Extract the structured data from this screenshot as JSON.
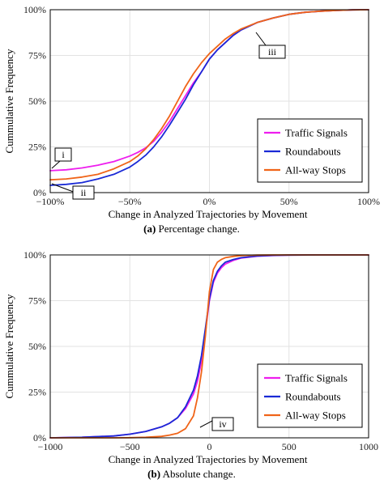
{
  "chart_data": [
    {
      "type": "line",
      "panel": "a",
      "ylabel": "Cummulative Frequency",
      "xlabel": "Change in Analyzed Trajectories by Movement",
      "caption_bold": "(a)",
      "caption_text": " Percentage change.",
      "xlim": [
        -100,
        100
      ],
      "ylim": [
        0,
        100
      ],
      "x_ticks": [
        -100,
        -50,
        0,
        50,
        100
      ],
      "x_tick_labels": [
        "−100%",
        "−50%",
        "0%",
        "50%",
        "100%"
      ],
      "y_ticks": [
        0,
        25,
        50,
        75,
        100
      ],
      "y_tick_labels": [
        "0%",
        "25%",
        "50%",
        "75%",
        "100%"
      ],
      "grid": true,
      "legend_position": "bottom-right",
      "series": [
        {
          "name": "Traffic Signals",
          "color": "#ee1eee",
          "x": [
            -100,
            -90,
            -80,
            -70,
            -60,
            -50,
            -45,
            -40,
            -35,
            -30,
            -25,
            -20,
            -15,
            -10,
            -5,
            0,
            5,
            10,
            15,
            20,
            30,
            40,
            50,
            60,
            70,
            80,
            90,
            100
          ],
          "y": [
            12,
            12.5,
            13.5,
            15,
            17,
            20,
            22,
            24.5,
            28,
            33,
            39,
            46,
            53,
            60,
            66,
            73,
            78,
            82,
            86,
            89,
            93,
            95.5,
            97.5,
            98.6,
            99.2,
            99.6,
            99.9,
            100
          ]
        },
        {
          "name": "Roundabouts",
          "color": "#1a2ad6",
          "x": [
            -100,
            -90,
            -80,
            -70,
            -60,
            -50,
            -45,
            -40,
            -35,
            -30,
            -25,
            -20,
            -15,
            -10,
            -5,
            0,
            5,
            10,
            15,
            20,
            30,
            40,
            50,
            60,
            70,
            80,
            90,
            100
          ],
          "y": [
            4,
            4.5,
            5.5,
            7.5,
            10,
            14,
            17,
            20.5,
            25,
            30.5,
            37,
            44,
            51,
            59,
            66,
            73,
            78,
            82,
            86,
            89,
            93,
            95.5,
            97.5,
            98.6,
            99.2,
            99.6,
            99.9,
            100
          ]
        },
        {
          "name": "All-way Stops",
          "color": "#f06418",
          "x": [
            -100,
            -90,
            -80,
            -70,
            -60,
            -50,
            -45,
            -40,
            -35,
            -30,
            -25,
            -20,
            -15,
            -10,
            -5,
            0,
            5,
            10,
            15,
            20,
            30,
            40,
            50,
            60,
            70,
            80,
            90,
            100
          ],
          "y": [
            7,
            7.5,
            8.5,
            10,
            13,
            17,
            20,
            24,
            29,
            35,
            42,
            50,
            58,
            65,
            71,
            76,
            80,
            84,
            87,
            89.5,
            93,
            95.5,
            97.5,
            98.6,
            99.2,
            99.6,
            99.9,
            100
          ]
        }
      ],
      "annotations": [
        {
          "label": "i",
          "x": -100,
          "y": 12
        },
        {
          "label": "ii",
          "x": -100,
          "y": 4
        },
        {
          "label": "iii",
          "x": 28,
          "y": 91
        }
      ]
    },
    {
      "type": "line",
      "panel": "b",
      "ylabel": "Cummulative Frequency",
      "xlabel": "Change in Analyzed Trajectories by Movement",
      "caption_bold": "(b)",
      "caption_text": " Absolute change.",
      "xlim": [
        -1000,
        1000
      ],
      "ylim": [
        0,
        100
      ],
      "x_ticks": [
        -1000,
        -500,
        0,
        500,
        1000
      ],
      "x_tick_labels": [
        "−1000",
        "−500",
        "0",
        "500",
        "1000"
      ],
      "y_ticks": [
        0,
        25,
        50,
        75,
        100
      ],
      "y_tick_labels": [
        "0%",
        "25%",
        "50%",
        "75%",
        "100%"
      ],
      "grid": true,
      "legend_position": "bottom-right",
      "series": [
        {
          "name": "Traffic Signals",
          "color": "#ee1eee",
          "x": [
            -1000,
            -800,
            -600,
            -500,
            -400,
            -300,
            -250,
            -200,
            -150,
            -100,
            -75,
            -50,
            -25,
            0,
            25,
            50,
            75,
            100,
            150,
            200,
            300,
            400,
            500,
            700,
            1000
          ],
          "y": [
            0,
            0.3,
            1,
            2,
            3.5,
            6,
            8,
            11,
            16,
            24,
            31,
            42,
            58,
            75,
            85,
            90,
            93,
            95,
            97,
            98.3,
            99.3,
            99.7,
            99.9,
            100,
            100
          ]
        },
        {
          "name": "Roundabouts",
          "color": "#1a2ad6",
          "x": [
            -1000,
            -800,
            -600,
            -500,
            -400,
            -300,
            -250,
            -200,
            -150,
            -100,
            -75,
            -50,
            -25,
            0,
            25,
            50,
            75,
            100,
            150,
            200,
            300,
            400,
            500,
            700,
            1000
          ],
          "y": [
            0,
            0.3,
            1,
            2,
            3.5,
            6,
            8,
            11,
            17,
            26,
            34,
            45,
            60,
            76,
            86,
            91,
            94,
            96,
            97.5,
            98.5,
            99.4,
            99.8,
            99.9,
            100,
            100
          ]
        },
        {
          "name": "All-way Stops",
          "color": "#f06418",
          "x": [
            -1000,
            -800,
            -600,
            -500,
            -400,
            -300,
            -250,
            -200,
            -150,
            -100,
            -75,
            -50,
            -25,
            0,
            25,
            50,
            75,
            100,
            150,
            200,
            300,
            400,
            500,
            700,
            1000
          ],
          "y": [
            0,
            0,
            0,
            0.1,
            0.3,
            0.8,
            1.5,
            2.5,
            5,
            12,
            22,
            36,
            56,
            80,
            92,
            96,
            97.5,
            98.5,
            99.2,
            99.6,
            99.9,
            100,
            100,
            100,
            100
          ]
        }
      ],
      "annotations": [
        {
          "label": "iv",
          "x": -100,
          "y": 5
        }
      ]
    }
  ]
}
